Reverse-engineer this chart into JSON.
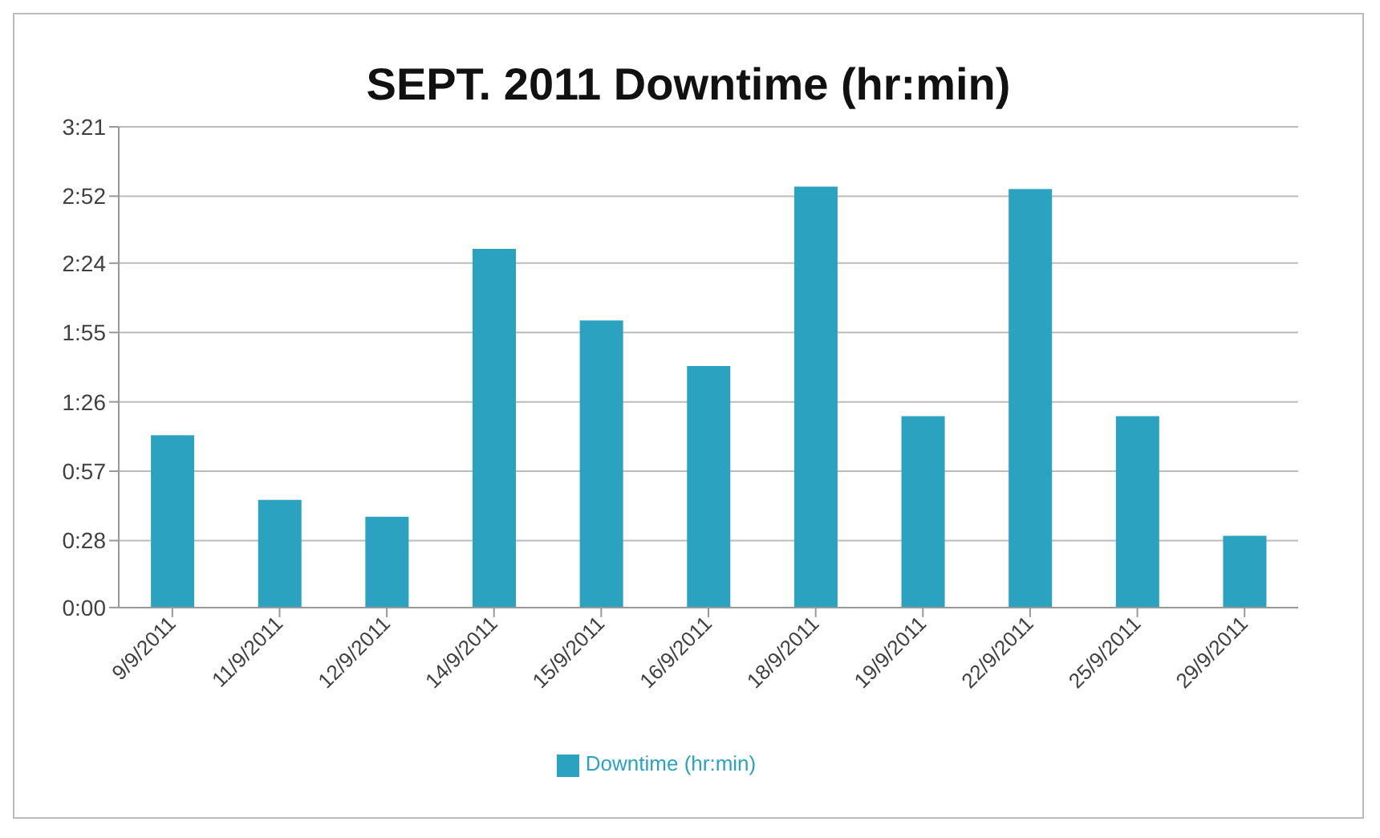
{
  "chart_data": {
    "type": "bar",
    "title": "SEPT. 2011 Downtime (hr:min)",
    "categories": [
      "9/9/2011",
      "11/9/2011",
      "12/9/2011",
      "14/9/2011",
      "15/9/2011",
      "16/9/2011",
      "18/9/2011",
      "19/9/2011",
      "22/9/2011",
      "25/9/2011",
      "29/9/2011"
    ],
    "series": [
      {
        "name": "Downtime (hr:min)",
        "color": "#2aa2c0",
        "values": [
          72,
          45,
          38,
          150,
          120,
          101,
          176,
          80,
          175,
          80,
          30
        ]
      }
    ],
    "ylim": [
      0,
      201
    ],
    "yticks": [
      {
        "value": 0,
        "label": "0:00"
      },
      {
        "value": 28,
        "label": "0:28"
      },
      {
        "value": 57,
        "label": "0:57"
      },
      {
        "value": 86,
        "label": "1:26"
      },
      {
        "value": 115,
        "label": "1:55"
      },
      {
        "value": 144,
        "label": "2:24"
      },
      {
        "value": 172,
        "label": "2:52"
      },
      {
        "value": 201,
        "label": "3:21"
      }
    ],
    "grid": "y",
    "legend": "bottom"
  }
}
